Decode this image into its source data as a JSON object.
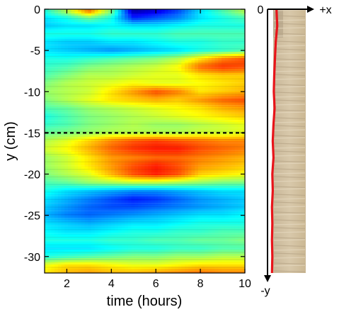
{
  "chart_data": {
    "type": "heatmap",
    "title": "",
    "xlabel": "time (hours)",
    "ylabel": "y (cm)",
    "xlim": [
      1,
      10
    ],
    "ylim": [
      -32,
      0
    ],
    "x_ticks": [
      2,
      4,
      6,
      8,
      10
    ],
    "y_ticks": [
      0,
      -5,
      -10,
      -15,
      -20,
      -25,
      -30
    ],
    "x_tick_labels": [
      "2",
      "4",
      "6",
      "8",
      "10"
    ],
    "y_tick_labels": [
      "0",
      "-5",
      "-10",
      "-15",
      "-20",
      "-25",
      "-30"
    ],
    "colormap": "jet",
    "reference_line": {
      "y": -15,
      "style": "dashed",
      "color": "#000000"
    },
    "bands": [
      {
        "y": -0.3,
        "v": [
          -0.2,
          0.1,
          0.5,
          0.0,
          -0.9,
          -0.8,
          -0.6,
          -0.3,
          -0.1,
          0.1
        ]
      },
      {
        "y": -1.0,
        "v": [
          -0.3,
          -0.2,
          0.0,
          -0.2,
          -0.7,
          -0.6,
          -0.5,
          -0.3,
          -0.2,
          -0.1
        ]
      },
      {
        "y": -2.0,
        "v": [
          -0.35,
          -0.3,
          -0.3,
          -0.25,
          -0.3,
          -0.3,
          -0.25,
          -0.2,
          -0.2,
          -0.2
        ]
      },
      {
        "y": -3.0,
        "v": [
          -0.2,
          -0.2,
          -0.2,
          -0.15,
          -0.15,
          -0.15,
          -0.1,
          -0.1,
          -0.1,
          -0.1
        ]
      },
      {
        "y": -4.0,
        "v": [
          -0.3,
          -0.35,
          -0.35,
          -0.3,
          -0.3,
          -0.25,
          -0.2,
          -0.2,
          -0.15,
          -0.15
        ]
      },
      {
        "y": -5.0,
        "v": [
          -0.3,
          -0.35,
          -0.4,
          -0.45,
          -0.4,
          -0.35,
          -0.3,
          -0.2,
          -0.15,
          -0.1
        ]
      },
      {
        "y": -6.0,
        "v": [
          -0.2,
          -0.2,
          -0.15,
          -0.1,
          -0.05,
          0.0,
          0.1,
          0.3,
          0.5,
          0.6
        ]
      },
      {
        "y": -7.0,
        "v": [
          -0.15,
          -0.1,
          0.0,
          0.05,
          0.1,
          0.15,
          0.25,
          0.55,
          0.65,
          0.6
        ]
      },
      {
        "y": -8.0,
        "v": [
          -0.1,
          0.0,
          0.1,
          0.1,
          0.15,
          0.2,
          0.2,
          0.3,
          0.35,
          0.35
        ]
      },
      {
        "y": -9.0,
        "v": [
          0.0,
          0.1,
          0.15,
          0.2,
          0.25,
          0.2,
          0.2,
          0.25,
          0.3,
          0.35
        ]
      },
      {
        "y": -10.0,
        "v": [
          0.05,
          0.1,
          0.15,
          0.3,
          0.45,
          0.6,
          0.5,
          0.3,
          0.35,
          0.4
        ]
      },
      {
        "y": -11.0,
        "v": [
          0.0,
          0.1,
          0.2,
          0.3,
          0.35,
          0.4,
          0.35,
          0.45,
          0.55,
          0.6
        ]
      },
      {
        "y": -12.0,
        "v": [
          -0.1,
          -0.05,
          0.05,
          0.1,
          0.15,
          0.2,
          0.25,
          0.3,
          0.4,
          0.45
        ]
      },
      {
        "y": -13.0,
        "v": [
          -0.2,
          -0.1,
          0.0,
          0.05,
          0.1,
          0.15,
          0.2,
          0.25,
          0.3,
          0.35
        ]
      },
      {
        "y": -14.0,
        "v": [
          -0.15,
          -0.1,
          0.0,
          0.05,
          0.1,
          0.05,
          0.05,
          0.1,
          0.15,
          0.2
        ]
      },
      {
        "y": -15.0,
        "v": [
          -0.05,
          0.0,
          0.05,
          0.1,
          0.1,
          0.1,
          0.1,
          0.15,
          0.15,
          0.2
        ]
      },
      {
        "y": -16.0,
        "v": [
          0.1,
          0.2,
          0.35,
          0.5,
          0.6,
          0.65,
          0.6,
          0.55,
          0.5,
          0.5
        ]
      },
      {
        "y": -17.0,
        "v": [
          0.15,
          0.25,
          0.4,
          0.55,
          0.65,
          0.7,
          0.7,
          0.6,
          0.55,
          0.5
        ]
      },
      {
        "y": -18.0,
        "v": [
          0.05,
          0.15,
          0.3,
          0.45,
          0.5,
          0.55,
          0.55,
          0.5,
          0.45,
          0.4
        ]
      },
      {
        "y": -19.0,
        "v": [
          0.05,
          0.15,
          0.3,
          0.45,
          0.6,
          0.7,
          0.6,
          0.45,
          0.4,
          0.35
        ]
      },
      {
        "y": -20.0,
        "v": [
          0.0,
          0.1,
          0.2,
          0.4,
          0.6,
          0.7,
          0.6,
          0.35,
          0.3,
          0.25
        ]
      },
      {
        "y": -21.0,
        "v": [
          -0.1,
          -0.05,
          0.05,
          0.1,
          0.15,
          0.15,
          0.1,
          0.05,
          0.0,
          0.0
        ]
      },
      {
        "y": -22.0,
        "v": [
          -0.2,
          -0.3,
          -0.35,
          -0.4,
          -0.45,
          -0.45,
          -0.4,
          -0.35,
          -0.3,
          -0.3
        ]
      },
      {
        "y": -23.0,
        "v": [
          -0.3,
          -0.4,
          -0.5,
          -0.6,
          -0.7,
          -0.65,
          -0.55,
          -0.45,
          -0.4,
          -0.35
        ]
      },
      {
        "y": -24.0,
        "v": [
          -0.35,
          -0.45,
          -0.55,
          -0.6,
          -0.6,
          -0.55,
          -0.5,
          -0.45,
          -0.4,
          -0.35
        ]
      },
      {
        "y": -25.0,
        "v": [
          -0.4,
          -0.5,
          -0.55,
          -0.5,
          -0.45,
          -0.4,
          -0.35,
          -0.3,
          -0.3,
          -0.25
        ]
      },
      {
        "y": -26.0,
        "v": [
          -0.3,
          -0.35,
          -0.4,
          -0.35,
          -0.3,
          -0.3,
          -0.25,
          -0.2,
          -0.2,
          -0.2
        ]
      },
      {
        "y": -27.0,
        "v": [
          -0.25,
          -0.3,
          -0.3,
          -0.25,
          -0.2,
          -0.2,
          -0.15,
          -0.15,
          -0.1,
          -0.1
        ]
      },
      {
        "y": -28.0,
        "v": [
          -0.2,
          -0.2,
          -0.2,
          -0.15,
          -0.15,
          -0.1,
          -0.1,
          -0.05,
          -0.05,
          0.0
        ]
      },
      {
        "y": -29.0,
        "v": [
          -0.3,
          -0.3,
          -0.3,
          -0.25,
          -0.2,
          -0.2,
          -0.15,
          -0.15,
          -0.1,
          -0.1
        ]
      },
      {
        "y": -30.0,
        "v": [
          -0.2,
          -0.15,
          -0.1,
          -0.05,
          0.0,
          0.0,
          0.05,
          0.05,
          0.1,
          0.1
        ]
      },
      {
        "y": -31.0,
        "v": [
          0.2,
          0.3,
          0.3,
          0.25,
          0.2,
          0.2,
          0.25,
          0.3,
          0.3,
          0.3
        ]
      },
      {
        "y": -32.0,
        "v": [
          0.3,
          0.4,
          0.45,
          0.4,
          0.4,
          0.45,
          0.5,
          0.55,
          0.5,
          0.5
        ]
      }
    ],
    "profile_panel": {
      "type": "photo-with-profile",
      "x_label": "+x",
      "y_label": "-y",
      "origin_label": "0",
      "line_color": "#e8141a",
      "profile": [
        {
          "y": 0,
          "x": 0.22
        },
        {
          "y": -2,
          "x": 0.24
        },
        {
          "y": -4,
          "x": 0.2
        },
        {
          "y": -6,
          "x": 0.18
        },
        {
          "y": -8,
          "x": 0.16
        },
        {
          "y": -10,
          "x": 0.15
        },
        {
          "y": -12,
          "x": 0.17
        },
        {
          "y": -14,
          "x": 0.14
        },
        {
          "y": -16,
          "x": 0.12
        },
        {
          "y": -18,
          "x": 0.14
        },
        {
          "y": -20,
          "x": 0.11
        },
        {
          "y": -22,
          "x": 0.12
        },
        {
          "y": -24,
          "x": 0.1
        },
        {
          "y": -26,
          "x": 0.11
        },
        {
          "y": -28,
          "x": 0.1
        },
        {
          "y": -30,
          "x": 0.11
        },
        {
          "y": -32,
          "x": 0.1
        }
      ]
    }
  }
}
